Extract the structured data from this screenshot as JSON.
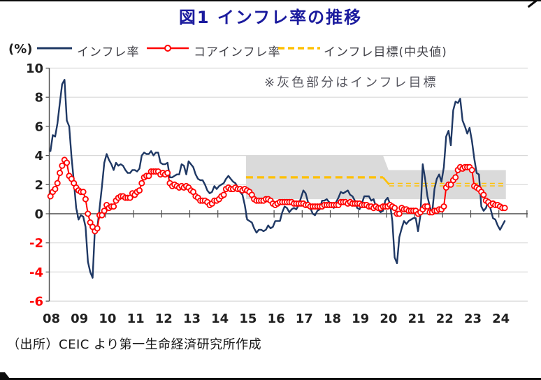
{
  "header": {
    "title": "図1 インフレ率の推移"
  },
  "legend": {
    "unit": "(%)",
    "items": [
      {
        "label": "インフレ率",
        "swatch": "solid-line",
        "color": "#1F3864"
      },
      {
        "label": "コアインフレ率",
        "swatch": "line-with-open-circle",
        "color": "#FF0000"
      },
      {
        "label": "インフレ目標(中央値)",
        "swatch": "dashed-line",
        "color": "#FFC000"
      }
    ]
  },
  "annotation": {
    "text": "※灰色部分はインフレ目標"
  },
  "footer": {
    "source": "（出所）CEIC より第一生命経済研究所作成"
  },
  "chart_data": {
    "type": "line",
    "title": "図1 インフレ率の推移",
    "ylabel": "(%)",
    "ylim": [
      -6,
      10
    ],
    "yticks": [
      10,
      8,
      6,
      4,
      2,
      0,
      -2,
      -4,
      -6
    ],
    "grid": true,
    "legend_position": "top",
    "x_unit": "month",
    "x_start": "2008-01",
    "x_end": "2024-03",
    "x_axis_span_end": "2024-12",
    "x_tick_labels": [
      "08",
      "09",
      "10",
      "11",
      "12",
      "13",
      "14",
      "15",
      "16",
      "17",
      "18",
      "19",
      "20",
      "21",
      "22",
      "23",
      "24"
    ],
    "colors": {
      "headline": "#1F3864",
      "core": "#FF0000",
      "target": "#FFC000",
      "band": "#DADADA",
      "grid": "#D9D9D9",
      "axis": "#4D4D4D",
      "tick_label": "#1F1F1F",
      "negative_tick_label": "#FF0000"
    },
    "series": [
      {
        "name": "インフレ率",
        "color": "#1F3864",
        "marker": "none",
        "values": [
          4.3,
          5.4,
          5.3,
          6.2,
          7.6,
          8.9,
          9.2,
          6.4,
          6.0,
          3.9,
          2.2,
          0.4,
          -0.4,
          -0.1,
          -0.2,
          -0.9,
          -3.3,
          -4.0,
          -4.4,
          -1.0,
          -1.0,
          0.4,
          1.9,
          3.5,
          4.1,
          3.7,
          3.4,
          3.0,
          3.5,
          3.3,
          3.4,
          3.3,
          3.0,
          2.8,
          2.8,
          3.0,
          3.0,
          2.9,
          3.1,
          4.0,
          4.2,
          4.1,
          4.1,
          4.3,
          4.0,
          4.2,
          4.2,
          3.5,
          3.4,
          3.4,
          3.5,
          2.5,
          2.5,
          2.6,
          2.7,
          2.7,
          3.4,
          3.3,
          2.7,
          3.6,
          3.4,
          3.2,
          2.7,
          2.4,
          2.3,
          2.3,
          2.0,
          1.6,
          1.4,
          1.5,
          1.9,
          1.7,
          1.9,
          2.0,
          2.1,
          2.4,
          2.6,
          2.4,
          2.2,
          2.1,
          1.8,
          1.5,
          1.3,
          0.6,
          -0.4,
          -0.5,
          -0.6,
          -1.0,
          -1.3,
          -1.1,
          -1.1,
          -1.2,
          -1.1,
          -0.8,
          -1.0,
          -0.9,
          -0.5,
          -0.5,
          -0.5,
          0.1,
          0.5,
          0.4,
          0.1,
          0.3,
          0.4,
          0.3,
          0.6,
          1.1,
          1.6,
          1.4,
          0.8,
          0.4,
          0.0,
          -0.1,
          0.2,
          0.3,
          0.9,
          0.9,
          1.0,
          0.8,
          0.7,
          0.4,
          0.8,
          1.1,
          1.5,
          1.4,
          1.5,
          1.6,
          1.3,
          1.2,
          0.9,
          0.4,
          0.3,
          0.7,
          1.2,
          1.2,
          1.2,
          0.9,
          1.0,
          0.5,
          0.3,
          0.1,
          0.2,
          0.9,
          1.1,
          0.7,
          -0.5,
          -3.0,
          -3.4,
          -1.6,
          -1.0,
          -0.5,
          -0.7,
          -0.5,
          -0.4,
          -0.3,
          -0.3,
          -1.2,
          -0.1,
          3.4,
          2.4,
          1.2,
          0.5,
          0.0,
          1.7,
          2.4,
          2.7,
          2.2,
          3.2,
          5.3,
          5.7,
          4.7,
          7.1,
          7.7,
          7.6,
          7.9,
          6.4,
          6.0,
          5.5,
          5.9,
          5.0,
          3.8,
          2.8,
          2.7,
          0.5,
          0.2,
          0.4,
          0.9,
          0.3,
          -0.3,
          -0.4,
          -0.8,
          -1.1,
          -0.8,
          -0.5
        ]
      },
      {
        "name": "コアインフレ率",
        "color": "#FF0000",
        "marker": "open-circle",
        "values": [
          1.2,
          1.5,
          1.7,
          2.1,
          2.8,
          3.3,
          3.7,
          3.5,
          2.6,
          2.4,
          2.1,
          1.8,
          1.6,
          1.5,
          1.5,
          1.0,
          0.0,
          -0.6,
          -0.9,
          -1.2,
          -1.0,
          -0.1,
          -0.1,
          0.2,
          0.6,
          0.4,
          0.5,
          0.5,
          0.9,
          1.1,
          1.2,
          1.2,
          1.1,
          1.1,
          1.1,
          1.4,
          1.3,
          1.5,
          1.6,
          2.1,
          2.5,
          2.6,
          2.6,
          2.9,
          2.9,
          2.9,
          2.9,
          2.7,
          2.8,
          2.7,
          2.8,
          2.1,
          1.9,
          2.0,
          1.9,
          1.8,
          1.9,
          1.8,
          1.9,
          1.8,
          1.6,
          1.5,
          1.2,
          1.1,
          0.9,
          0.9,
          0.9,
          0.8,
          0.6,
          0.7,
          0.9,
          0.9,
          1.0,
          1.2,
          1.3,
          1.7,
          1.8,
          1.7,
          1.7,
          1.8,
          1.7,
          1.7,
          1.6,
          1.7,
          1.6,
          1.5,
          1.3,
          1.0,
          0.9,
          0.9,
          0.9,
          0.9,
          1.0,
          1.0,
          0.9,
          0.7,
          0.6,
          0.7,
          0.8,
          0.8,
          0.8,
          0.8,
          0.8,
          0.8,
          0.7,
          0.7,
          0.7,
          0.7,
          0.7,
          0.6,
          0.6,
          0.5,
          0.5,
          0.5,
          0.5,
          0.5,
          0.5,
          0.6,
          0.6,
          0.6,
          0.6,
          0.6,
          0.6,
          0.6,
          0.8,
          0.8,
          0.8,
          0.7,
          0.8,
          0.7,
          0.7,
          0.7,
          0.7,
          0.6,
          0.6,
          0.6,
          0.5,
          0.5,
          0.4,
          0.5,
          0.4,
          0.4,
          0.5,
          0.5,
          0.5,
          0.6,
          0.5,
          0.4,
          0.0,
          0.0,
          0.4,
          0.3,
          0.3,
          0.2,
          0.2,
          0.2,
          0.2,
          0.0,
          0.1,
          0.3,
          0.5,
          0.5,
          0.1,
          0.1,
          0.2,
          0.2,
          0.3,
          0.3,
          0.5,
          1.8,
          2.0,
          2.0,
          2.3,
          2.5,
          3.0,
          3.2,
          3.1,
          3.2,
          3.2,
          3.2,
          3.0,
          1.9,
          1.8,
          1.7,
          1.5,
          1.3,
          0.9,
          0.8,
          0.6,
          0.7,
          0.6,
          0.6,
          0.5,
          0.4,
          0.4
        ]
      }
    ],
    "target": {
      "name": "インフレ目標(中央値)",
      "color": "#FFC000",
      "band_color": "#DADADA",
      "band_note": "※灰色部分はインフレ目標",
      "segments": [
        {
          "from": "2015-01",
          "to": "2019-12",
          "low": 1.0,
          "high": 4.0,
          "mid": 2.5
        },
        {
          "from": "2020-01",
          "to": "2024-03",
          "low": 1.0,
          "high": 3.0,
          "mid": 2.0
        }
      ]
    }
  }
}
